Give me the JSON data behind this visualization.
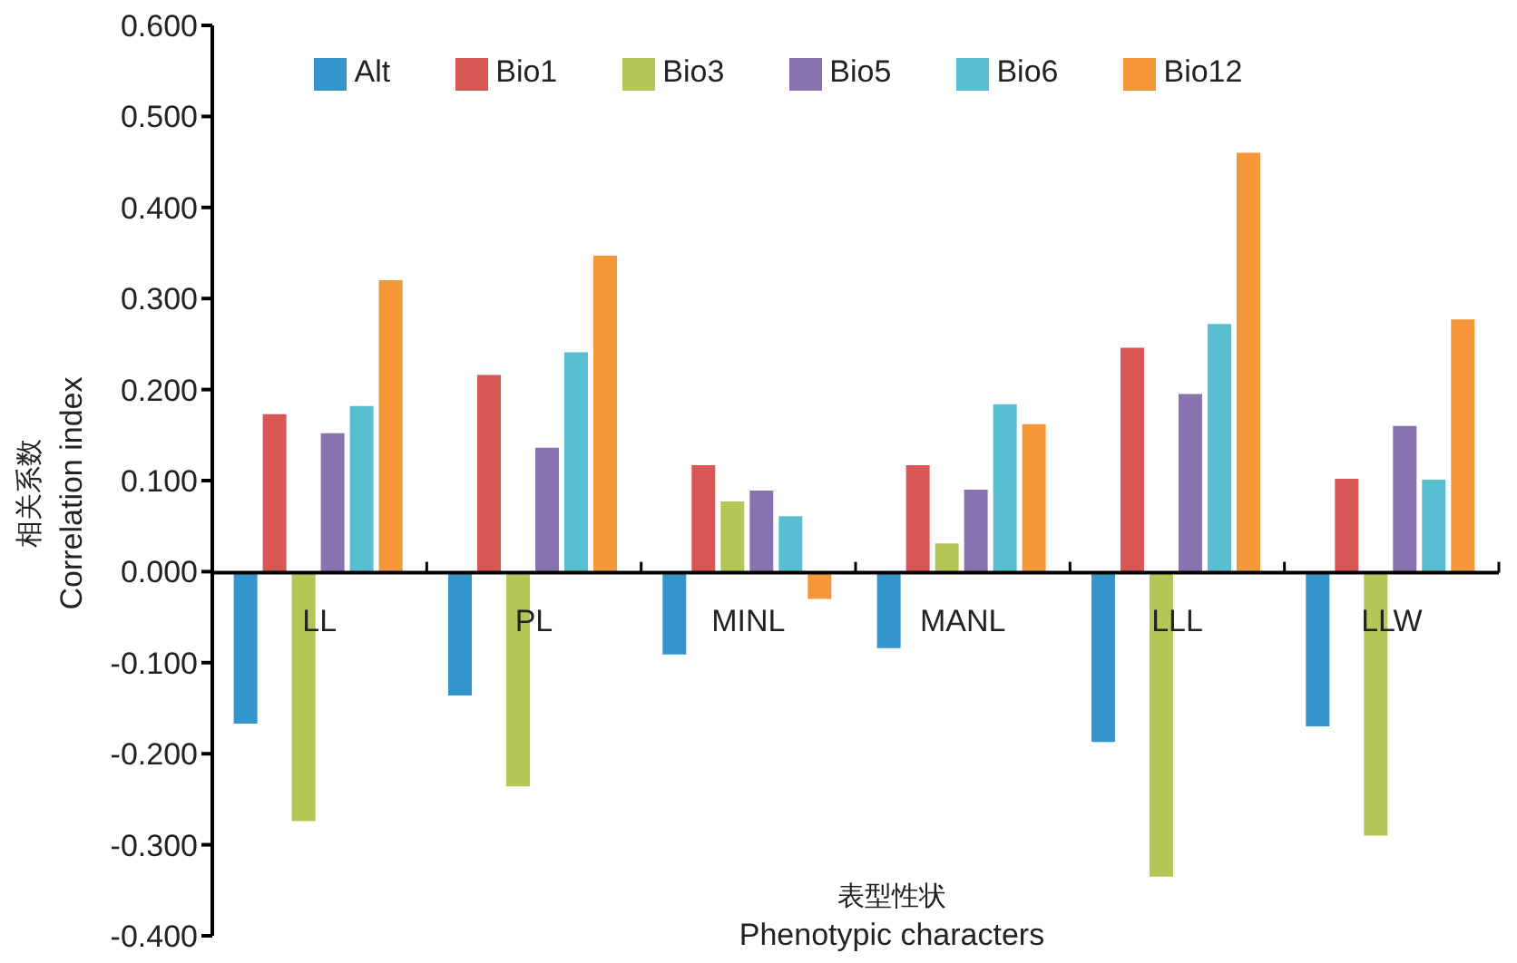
{
  "chart_data": {
    "type": "bar",
    "xlabel": "表型性状\nPhenotypic characters",
    "ylabel": "相关系数\nCorrelation index",
    "categories": [
      "LL",
      "PL",
      "MINL",
      "MANL",
      "LLL",
      "LLW"
    ],
    "series": [
      {
        "name": "Alt",
        "color": "#3494cc",
        "values": [
          -0.167,
          -0.136,
          -0.091,
          -0.084,
          -0.187,
          -0.17
        ]
      },
      {
        "name": "Bio1",
        "color": "#d85654",
        "values": [
          0.173,
          0.216,
          0.117,
          0.117,
          0.246,
          0.102
        ]
      },
      {
        "name": "Bio3",
        "color": "#b5c657",
        "values": [
          -0.274,
          -0.236,
          0.077,
          0.031,
          -0.335,
          -0.29
        ]
      },
      {
        "name": "Bio5",
        "color": "#8873b0",
        "values": [
          0.152,
          0.136,
          0.089,
          0.09,
          0.195,
          0.16
        ]
      },
      {
        "name": "Bio6",
        "color": "#58bfd2",
        "values": [
          0.182,
          0.241,
          0.061,
          0.184,
          0.272,
          0.101
        ]
      },
      {
        "name": "Bio12",
        "color": "#f39739",
        "values": [
          0.32,
          0.347,
          -0.03,
          0.162,
          0.46,
          0.277
        ]
      }
    ],
    "ylim": [
      -0.4,
      0.6
    ],
    "yticks": [
      {
        "value": -0.4,
        "label": "-0.400"
      },
      {
        "value": -0.3,
        "label": "-0.300"
      },
      {
        "value": -0.2,
        "label": "-0.200"
      },
      {
        "value": -0.1,
        "label": "-0.100"
      },
      {
        "value": 0,
        "label": "0.000"
      },
      {
        "value": 0.1,
        "label": "0.100"
      },
      {
        "value": 0.2,
        "label": "0.200"
      },
      {
        "value": 0.3,
        "label": "0.300"
      },
      {
        "value": 0.4,
        "label": "0.400"
      },
      {
        "value": 0.5,
        "label": "0.500"
      },
      {
        "value": 0.6,
        "label": "0.600"
      }
    ],
    "grid": false,
    "legend": "top"
  }
}
